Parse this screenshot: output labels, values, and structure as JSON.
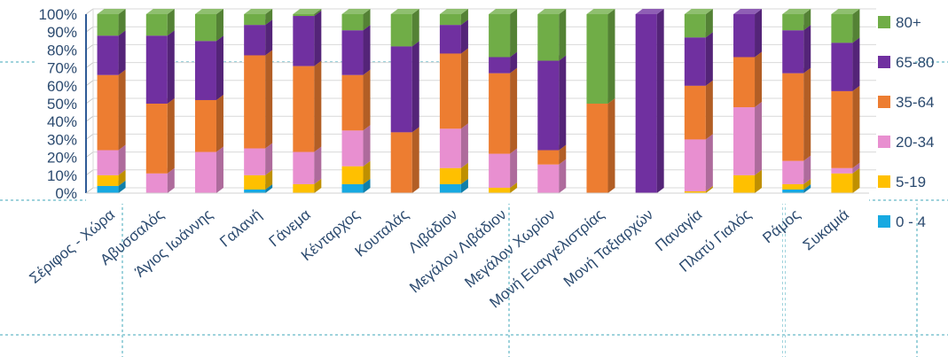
{
  "chart_data": {
    "type": "bar",
    "stacked": true,
    "percent": true,
    "ylim": [
      0,
      100
    ],
    "y_ticks": [
      "0%",
      "10%",
      "20%",
      "30%",
      "40%",
      "50%",
      "60%",
      "70%",
      "80%",
      "90%",
      "100%"
    ],
    "legend_position": "right",
    "categories": [
      "Σέριφος - Χώρα",
      "Αβυσσαλός",
      "Άγιος Ιωάννης",
      "Γαλανή",
      "Γάνεμα",
      "Κένταρχος",
      "Κουταλάς",
      "Λιβάδιον",
      "Μεγάλον Λιβάδιον",
      "Μεγάλον Χωρίον",
      "Μονή Ευαγγελιστρίας",
      "Μονή Ταξιαρχών",
      "Παναγία",
      "Πλατύ Γιαλός",
      "Ράμος",
      "Συκαμιά"
    ],
    "series": [
      {
        "name": "0 - 4",
        "color": "#17a9e1",
        "values": [
          4,
          0,
          0,
          2,
          0,
          5,
          0,
          5,
          0,
          0,
          0,
          0,
          0,
          0,
          2,
          0
        ]
      },
      {
        "name": "5-19",
        "color": "#ffc000",
        "values": [
          6,
          0,
          0,
          8,
          5,
          10,
          0,
          9,
          3,
          0,
          0,
          0,
          1,
          10,
          3,
          11
        ]
      },
      {
        "name": "20-34",
        "color": "#e88fd0",
        "values": [
          14,
          11,
          23,
          15,
          18,
          20,
          0,
          22,
          19,
          16,
          0,
          0,
          29,
          38,
          13,
          3
        ]
      },
      {
        "name": "35-64",
        "color": "#ed7d31",
        "values": [
          42,
          39,
          29,
          52,
          48,
          31,
          34,
          42,
          45,
          8,
          50,
          0,
          30,
          28,
          49,
          43
        ]
      },
      {
        "name": "65-80",
        "color": "#7030a0",
        "values": [
          22,
          38,
          33,
          17,
          28,
          25,
          48,
          16,
          9,
          50,
          0,
          100,
          27,
          24,
          24,
          27
        ]
      },
      {
        "name": "80+",
        "color": "#70ad47",
        "values": [
          12,
          12,
          15,
          6,
          1,
          9,
          18,
          6,
          24,
          26,
          50,
          0,
          13,
          0,
          9,
          16
        ]
      }
    ]
  }
}
